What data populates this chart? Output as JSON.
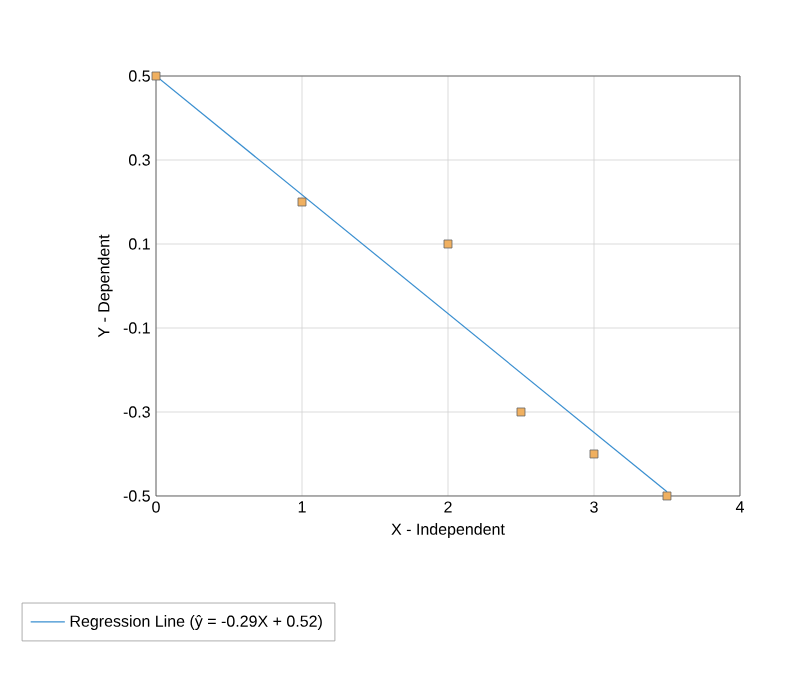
{
  "chart_data": {
    "type": "scatter",
    "xlabel": "X - Independent",
    "ylabel": "Y - Dependent",
    "xlim": [
      0,
      4
    ],
    "xticks": [
      0,
      1,
      2,
      3,
      4
    ],
    "ylim": [
      -0.5,
      0.5
    ],
    "yticks": [
      -0.5,
      -0.3,
      -0.1,
      0.1,
      0.3,
      0.5
    ],
    "grid": true,
    "legend": "bottom left",
    "series": [
      {
        "marker": "square",
        "color": "#f0b060",
        "x": [
          0,
          1,
          2,
          2.5,
          3,
          3.5
        ],
        "values": [
          0.5,
          0.2,
          0.1,
          -0.3,
          -0.4,
          -0.5
        ]
      },
      {
        "type": "line",
        "name": "Regression Line (ŷ = -0.29X + 0.52)",
        "color": "#3a8fd0",
        "x": [
          0,
          3.5
        ],
        "values": [
          0.5,
          -0.49
        ]
      }
    ]
  }
}
